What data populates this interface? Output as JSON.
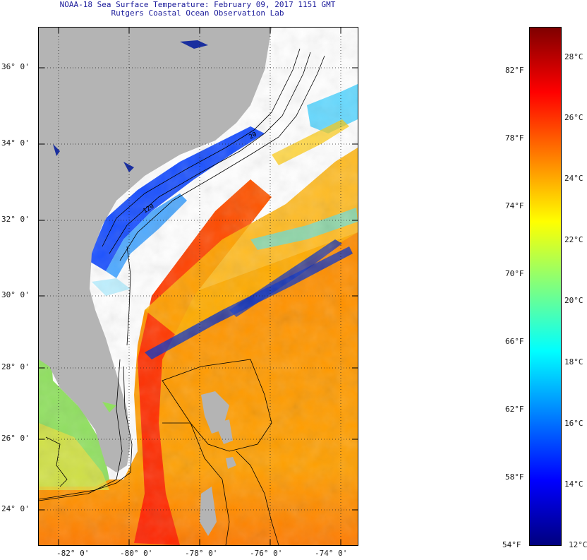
{
  "header": {
    "line1": "NOAA-18 Sea Surface Temperature:  February 09, 2017 1151 GMT",
    "line2": "Rutgers Coastal Ocean Observation Lab"
  },
  "map": {
    "lat_labels": [
      "36° 0'",
      "34° 0'",
      "32° 0'",
      "30° 0'",
      "28° 0'",
      "26° 0'",
      "24° 0'"
    ],
    "lon_labels": [
      "-82° 0'",
      "-80° 0'",
      "-78° 0'",
      "-76° 0'",
      "-74° 0'"
    ],
    "contour_labels": [
      "20",
      "120"
    ],
    "colors": {
      "land": "#b4b4b4",
      "no_data": "#ffffff",
      "contour": "#000000"
    }
  },
  "colorbar": {
    "fahrenheit_labels": [
      "82°F",
      "78°F",
      "74°F",
      "70°F",
      "66°F",
      "62°F",
      "58°F",
      "54°F"
    ],
    "celsius_labels": [
      "28°C",
      "26°C",
      "24°C",
      "22°C",
      "20°C",
      "18°C",
      "16°C",
      "14°C",
      "12°C"
    ],
    "stops": [
      "#00007f",
      "#0000ff",
      "#007fff",
      "#00ffff",
      "#7fff7f",
      "#ffff00",
      "#ff7f00",
      "#ff0000",
      "#7f0000"
    ]
  }
}
